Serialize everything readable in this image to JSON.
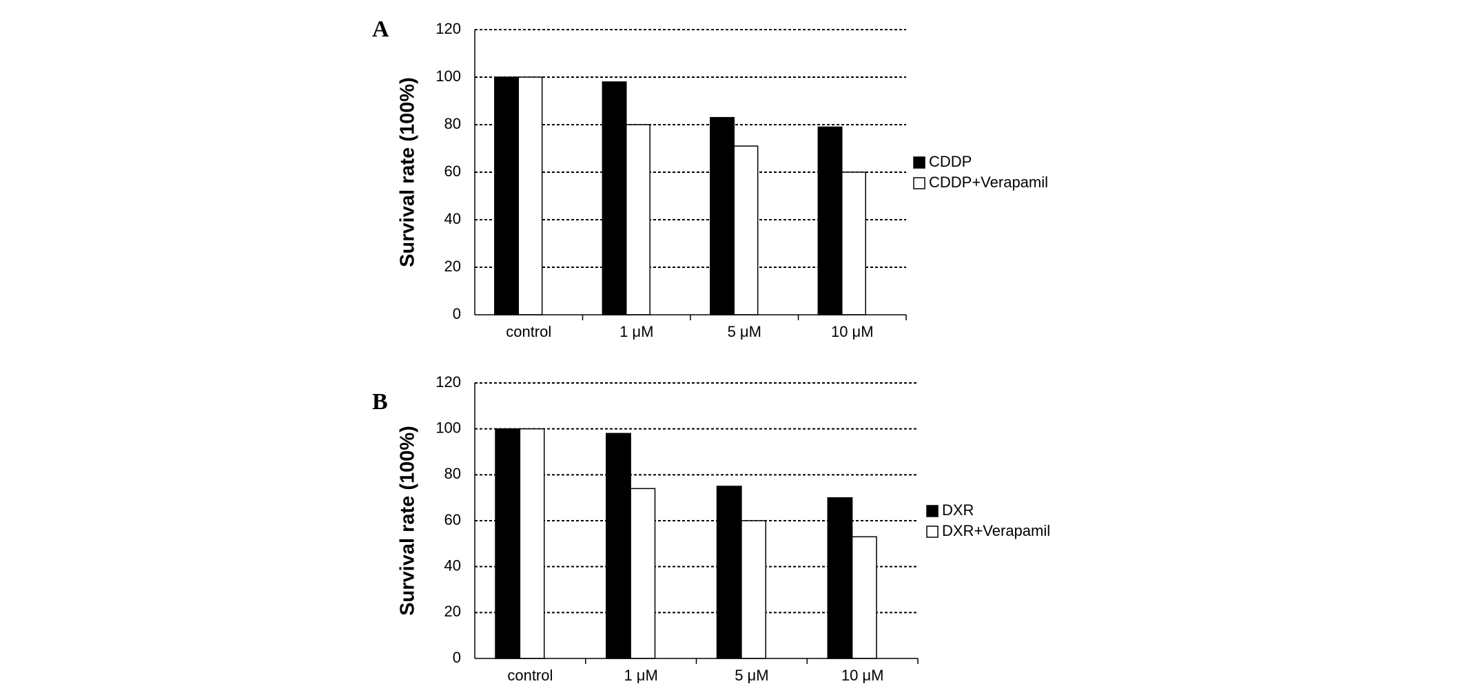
{
  "chart_data": [
    {
      "type": "bar",
      "panel": "A",
      "y_label": "Survival rate (100%)",
      "categories": [
        "control",
        "1 μM",
        "5 μM",
        "10 μM"
      ],
      "series": [
        {
          "name": "CDDP",
          "color": "#000000",
          "values": [
            100,
            98,
            83,
            79
          ]
        },
        {
          "name": "CDDP+Verapamil",
          "color": "#ffffff",
          "values": [
            100,
            80,
            71,
            60
          ]
        }
      ],
      "ylim": [
        0,
        120
      ],
      "yticks": [
        0,
        20,
        40,
        60,
        80,
        100,
        120
      ],
      "grid": true,
      "legend": "right"
    },
    {
      "type": "bar",
      "panel": "B",
      "y_label": "Survival rate (100%)",
      "categories": [
        "control",
        "1 μM",
        "5 μM",
        "10 μM"
      ],
      "series": [
        {
          "name": "DXR",
          "color": "#000000",
          "values": [
            100,
            98,
            75,
            70
          ]
        },
        {
          "name": "DXR+Verapamil",
          "color": "#ffffff",
          "values": [
            100,
            74,
            60,
            53
          ]
        }
      ],
      "ylim": [
        0,
        120
      ],
      "yticks": [
        0,
        20,
        40,
        60,
        80,
        100,
        120
      ],
      "grid": true,
      "legend": "right"
    }
  ]
}
